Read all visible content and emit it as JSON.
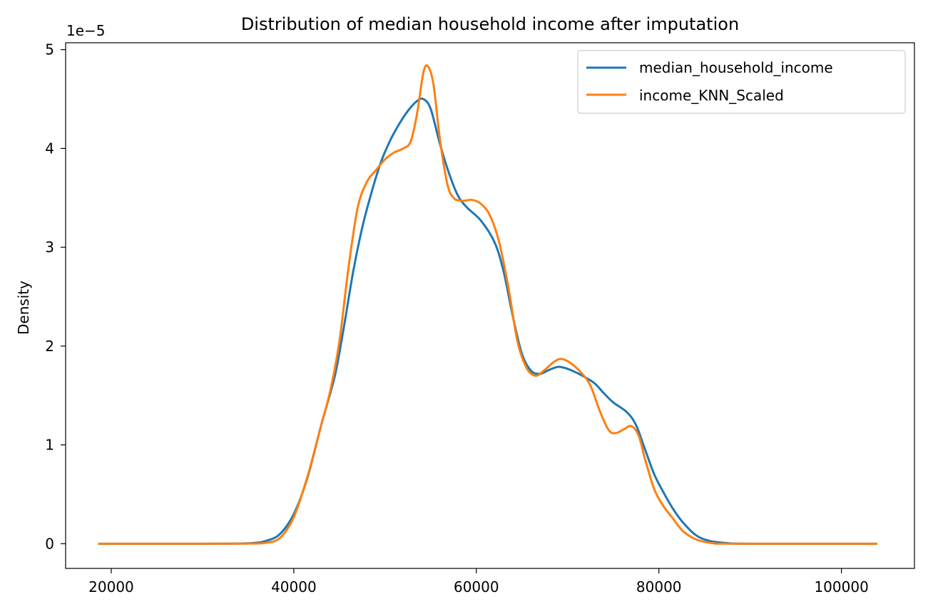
{
  "chart_data": {
    "type": "line",
    "title": "Distribution of median household income after imputation",
    "xlabel": "",
    "ylabel": "Density",
    "y_offset_label": "1e−5",
    "xlim": [
      15000,
      108000
    ],
    "ylim": [
      -0.25,
      5.07
    ],
    "x_ticks": [
      20000,
      40000,
      60000,
      80000,
      100000
    ],
    "y_ticks": [
      0,
      1,
      2,
      3,
      4,
      5
    ],
    "grid": false,
    "legend_position": "top-right",
    "series": [
      {
        "name": "median_household_income",
        "color": "#1f77b4",
        "points": [
          [
            18700,
            0
          ],
          [
            30000,
            0
          ],
          [
            35000,
            0.004
          ],
          [
            37000,
            0.03
          ],
          [
            38500,
            0.1
          ],
          [
            40000,
            0.3
          ],
          [
            41500,
            0.67
          ],
          [
            43000,
            1.2
          ],
          [
            44500,
            1.7
          ],
          [
            45500,
            2.2
          ],
          [
            46500,
            2.75
          ],
          [
            47500,
            3.2
          ],
          [
            48500,
            3.55
          ],
          [
            49500,
            3.85
          ],
          [
            50500,
            4.07
          ],
          [
            51500,
            4.24
          ],
          [
            52500,
            4.38
          ],
          [
            53500,
            4.48
          ],
          [
            54200,
            4.5
          ],
          [
            55000,
            4.4
          ],
          [
            56000,
            4.05
          ],
          [
            57000,
            3.75
          ],
          [
            58000,
            3.52
          ],
          [
            59000,
            3.4
          ],
          [
            60500,
            3.27
          ],
          [
            62000,
            3.05
          ],
          [
            63000,
            2.75
          ],
          [
            64000,
            2.3
          ],
          [
            65000,
            1.92
          ],
          [
            66000,
            1.75
          ],
          [
            67000,
            1.72
          ],
          [
            68000,
            1.76
          ],
          [
            69000,
            1.79
          ],
          [
            70000,
            1.77
          ],
          [
            71000,
            1.73
          ],
          [
            72000,
            1.68
          ],
          [
            73000,
            1.62
          ],
          [
            74000,
            1.52
          ],
          [
            75000,
            1.43
          ],
          [
            76500,
            1.33
          ],
          [
            77500,
            1.2
          ],
          [
            78500,
            0.95
          ],
          [
            79500,
            0.7
          ],
          [
            80500,
            0.52
          ],
          [
            81500,
            0.36
          ],
          [
            82500,
            0.23
          ],
          [
            84000,
            0.09
          ],
          [
            85500,
            0.03
          ],
          [
            87500,
            0.006
          ],
          [
            90000,
            0
          ],
          [
            103800,
            0
          ]
        ]
      },
      {
        "name": "income_KNN_Scaled",
        "color": "#ff7f0e",
        "points": [
          [
            18700,
            0
          ],
          [
            30000,
            0
          ],
          [
            35000,
            0.001
          ],
          [
            37000,
            0.01
          ],
          [
            38500,
            0.06
          ],
          [
            40000,
            0.27
          ],
          [
            41500,
            0.68
          ],
          [
            43000,
            1.2
          ],
          [
            44000,
            1.55
          ],
          [
            45000,
            2.05
          ],
          [
            46000,
            2.8
          ],
          [
            47000,
            3.4
          ],
          [
            48000,
            3.66
          ],
          [
            49000,
            3.78
          ],
          [
            50000,
            3.89
          ],
          [
            51000,
            3.96
          ],
          [
            52000,
            4.0
          ],
          [
            52800,
            4.07
          ],
          [
            53500,
            4.35
          ],
          [
            54200,
            4.77
          ],
          [
            54700,
            4.83
          ],
          [
            55300,
            4.65
          ],
          [
            56000,
            4.1
          ],
          [
            56800,
            3.65
          ],
          [
            57500,
            3.5
          ],
          [
            58500,
            3.47
          ],
          [
            59500,
            3.48
          ],
          [
            60500,
            3.44
          ],
          [
            61500,
            3.32
          ],
          [
            62500,
            3.05
          ],
          [
            63500,
            2.6
          ],
          [
            64500,
            2.05
          ],
          [
            65500,
            1.78
          ],
          [
            66500,
            1.7
          ],
          [
            67500,
            1.76
          ],
          [
            68500,
            1.84
          ],
          [
            69300,
            1.87
          ],
          [
            70300,
            1.83
          ],
          [
            71500,
            1.73
          ],
          [
            72500,
            1.6
          ],
          [
            73500,
            1.35
          ],
          [
            74500,
            1.15
          ],
          [
            75300,
            1.12
          ],
          [
            76200,
            1.16
          ],
          [
            77000,
            1.19
          ],
          [
            77800,
            1.09
          ],
          [
            78500,
            0.85
          ],
          [
            79500,
            0.55
          ],
          [
            80500,
            0.38
          ],
          [
            81500,
            0.26
          ],
          [
            82500,
            0.14
          ],
          [
            83500,
            0.07
          ],
          [
            84500,
            0.03
          ],
          [
            86000,
            0.005
          ],
          [
            88000,
            0
          ],
          [
            103800,
            0
          ]
        ]
      }
    ]
  }
}
